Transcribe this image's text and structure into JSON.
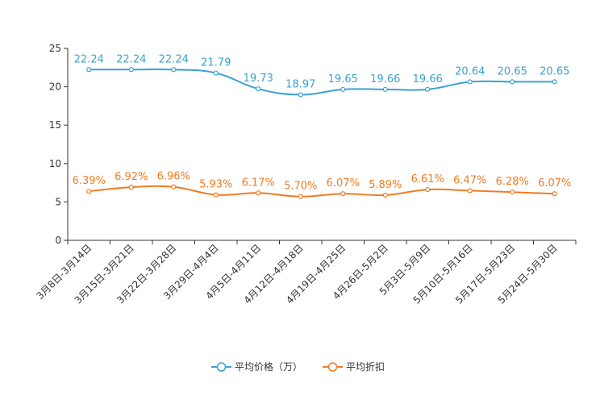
{
  "chart_data": {
    "type": "line",
    "categories": [
      "3月8日-3月14日",
      "3月15日-3月21日",
      "3月22日-3月28日",
      "3月29日-4月4日",
      "4月5日-4月11日",
      "4月12日-4月18日",
      "4月19日-4月25日",
      "4月26日-5月2日",
      "5月3日-5月9日",
      "5月10日-5月16日",
      "5月17日-5月23日",
      "5月24日-5月30日"
    ],
    "series": [
      {
        "name": "平均价格（万）",
        "color": "#3ba1d3",
        "values": [
          22.24,
          22.24,
          22.24,
          21.79,
          19.73,
          18.97,
          19.65,
          19.66,
          19.66,
          20.64,
          20.65,
          20.65
        ],
        "labels": [
          "22.24",
          "22.24",
          "22.24",
          "21.79",
          "19.73",
          "18.97",
          "19.65",
          "19.66",
          "19.66",
          "20.64",
          "20.65",
          "20.65"
        ]
      },
      {
        "name": "平均折扣",
        "color": "#f07c21",
        "values": [
          6.39,
          6.92,
          6.96,
          5.93,
          6.17,
          5.7,
          6.07,
          5.89,
          6.61,
          6.47,
          6.28,
          6.07
        ],
        "labels": [
          "6.39%",
          "6.92%",
          "6.96%",
          "5.93%",
          "6.17%",
          "5.70%",
          "6.07%",
          "5.89%",
          "6.61%",
          "6.47%",
          "6.28%",
          "6.07%"
        ]
      }
    ],
    "ylim": [
      0,
      25
    ],
    "yticks": [
      "0",
      "5",
      "10",
      "15",
      "20",
      "25"
    ],
    "title": "",
    "xlabel": "",
    "ylabel": "",
    "legend_position": "bottom-center",
    "grid": false
  }
}
